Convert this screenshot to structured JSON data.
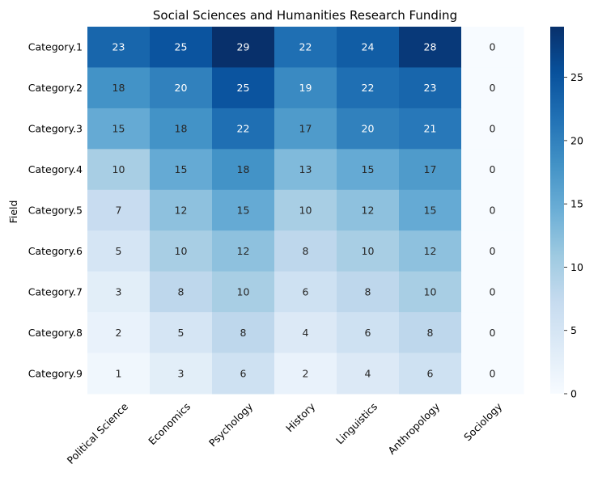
{
  "chart_data": {
    "type": "heatmap",
    "title": "Social Sciences and Humanities Research Funding",
    "xlabel": "",
    "ylabel": "Field",
    "columns": [
      "Political Science",
      "Economics",
      "Psychology",
      "History",
      "Linguistics",
      "Anthropology",
      "Sociology"
    ],
    "rows": [
      "Category.1",
      "Category.2",
      "Category.3",
      "Category.4",
      "Category.5",
      "Category.6",
      "Category.7",
      "Category.8",
      "Category.9"
    ],
    "values": [
      [
        23,
        25,
        29,
        22,
        24,
        28,
        0
      ],
      [
        18,
        20,
        25,
        19,
        22,
        23,
        0
      ],
      [
        15,
        18,
        22,
        17,
        20,
        21,
        0
      ],
      [
        10,
        15,
        18,
        13,
        15,
        17,
        0
      ],
      [
        7,
        12,
        15,
        10,
        12,
        15,
        0
      ],
      [
        5,
        10,
        12,
        8,
        10,
        12,
        0
      ],
      [
        3,
        8,
        10,
        6,
        8,
        10,
        0
      ],
      [
        2,
        5,
        8,
        4,
        6,
        8,
        0
      ],
      [
        1,
        3,
        6,
        2,
        4,
        6,
        0
      ]
    ],
    "vmin": 0,
    "vmax": 29,
    "colormap": "Blues",
    "colorbar_ticks": [
      0,
      5,
      10,
      15,
      20,
      25
    ],
    "annotations": true
  }
}
